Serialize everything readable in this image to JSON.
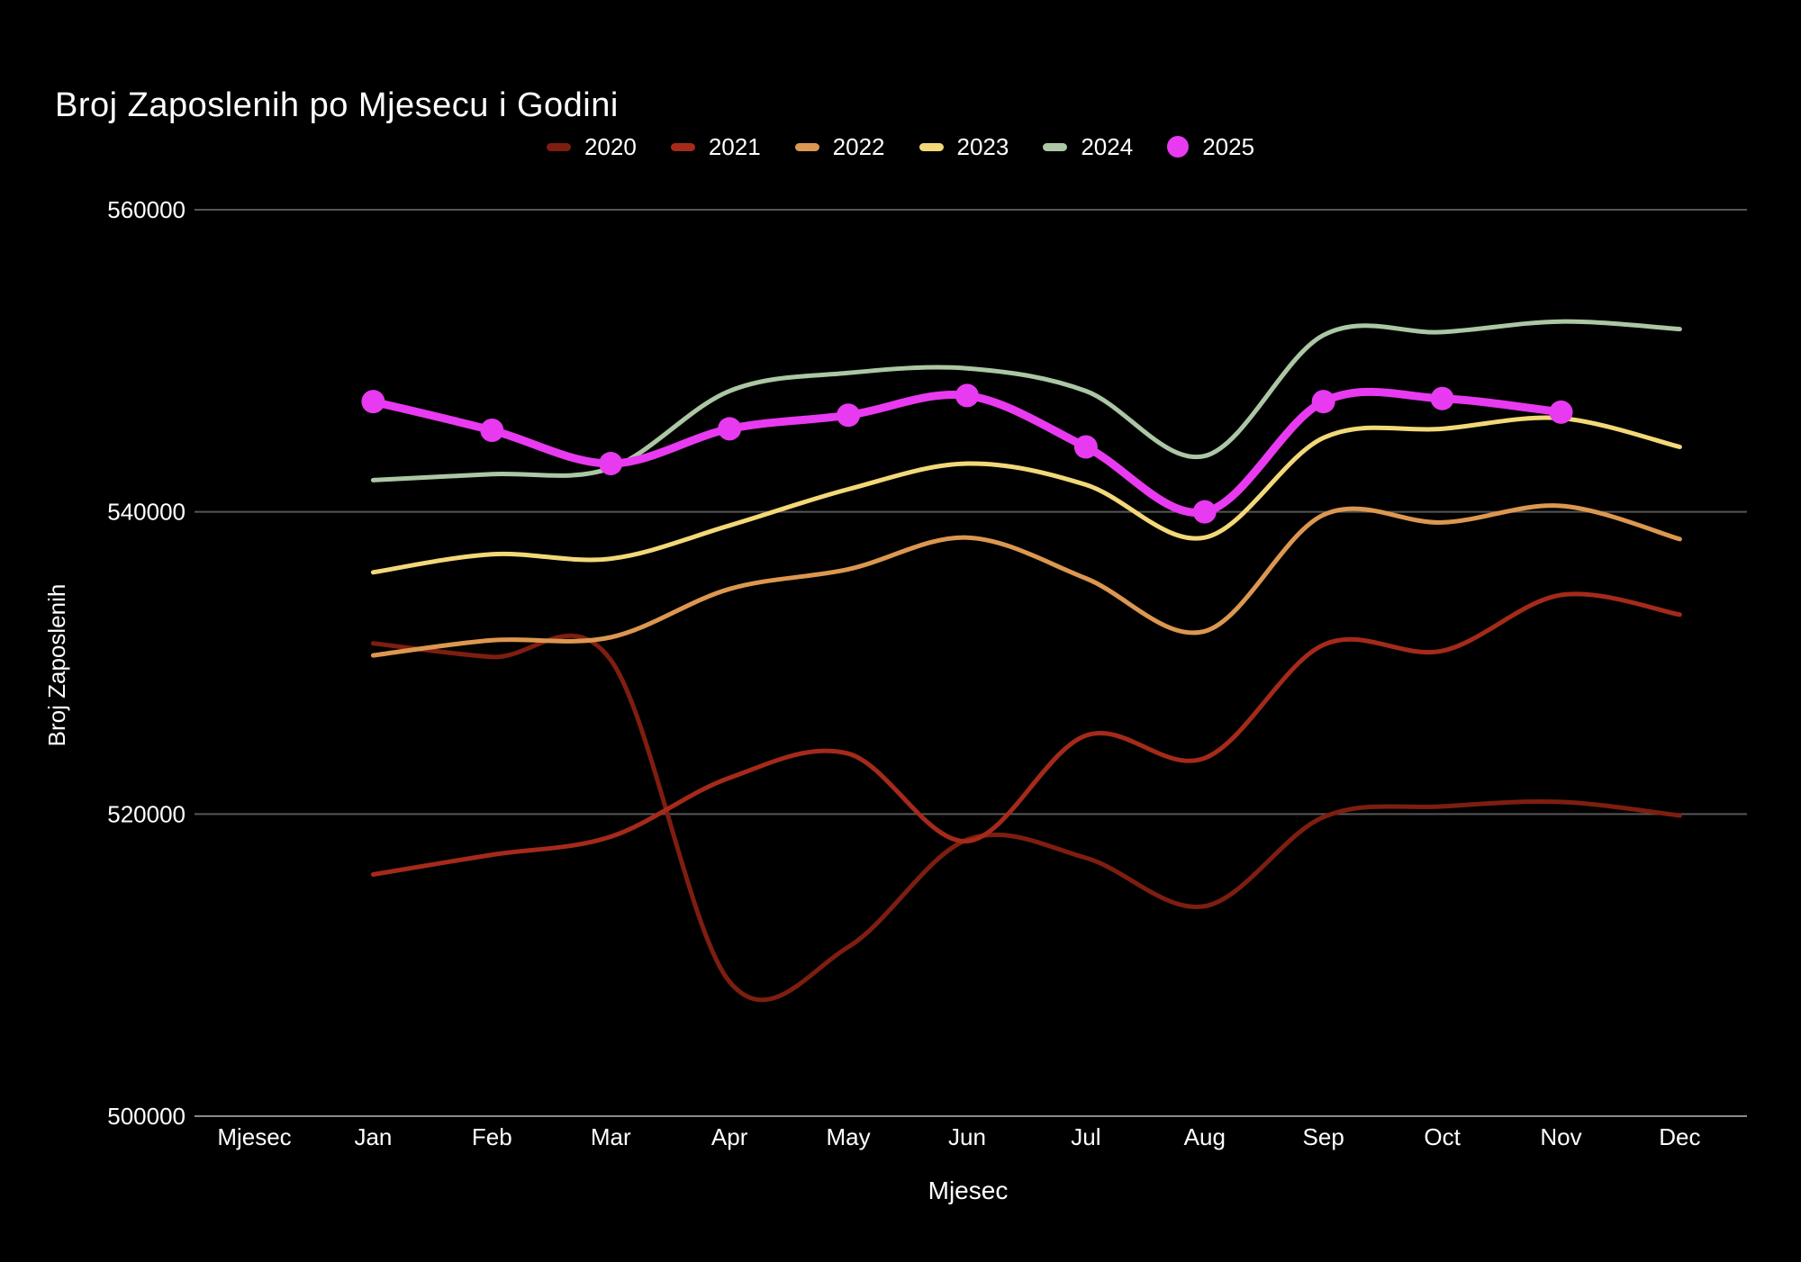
{
  "title": "Broj Zaposlenih po Mjesecu i Godini",
  "colors": {
    "background": "#000000",
    "text": "#ffffff",
    "grid": "#565656",
    "axis_line": "#8a8a8a"
  },
  "chart_data": {
    "type": "line",
    "title": "Broj Zaposlenih po Mjesecu i Godini",
    "xlabel": "Mjesec",
    "ylabel": "Broj Zaposlenih",
    "x_categories": [
      "Mjesec",
      "Jan",
      "Feb",
      "Mar",
      "Apr",
      "May",
      "Jun",
      "Jul",
      "Aug",
      "Sep",
      "Oct",
      "Nov",
      "Dec"
    ],
    "y_ticks": [
      560000,
      540000,
      520000,
      500000
    ],
    "ylim": [
      500000,
      560000
    ],
    "grid": true,
    "legend_position": "top-center",
    "curve": "spline",
    "series": [
      {
        "name": "2020",
        "color": "#7e1e10",
        "style": "line",
        "values": [
          null,
          531300,
          530400,
          530200,
          508900,
          511200,
          518300,
          517100,
          513900,
          519800,
          520500,
          520800,
          519900
        ]
      },
      {
        "name": "2021",
        "color": "#a52a1a",
        "style": "line",
        "values": [
          null,
          516000,
          517300,
          518500,
          522400,
          524000,
          518200,
          525200,
          523700,
          531200,
          530800,
          534500,
          533200
        ]
      },
      {
        "name": "2022",
        "color": "#dc9750",
        "style": "line",
        "values": [
          null,
          530500,
          531500,
          531700,
          534900,
          536200,
          538300,
          535600,
          532100,
          539800,
          539300,
          540400,
          538200
        ]
      },
      {
        "name": "2023",
        "color": "#f3d878",
        "style": "line",
        "values": [
          null,
          536000,
          537200,
          536900,
          539100,
          541500,
          543200,
          541800,
          538300,
          544900,
          545500,
          546200,
          544300
        ]
      },
      {
        "name": "2024",
        "color": "#abc7a4",
        "style": "line",
        "values": [
          null,
          542100,
          542500,
          542900,
          548000,
          549200,
          549500,
          548000,
          543700,
          551700,
          551900,
          552600,
          552100
        ]
      },
      {
        "name": "2025",
        "color": "#e83af0",
        "style": "line+markers",
        "values": [
          null,
          547300,
          545400,
          543200,
          545500,
          546400,
          547700,
          544300,
          540000,
          547300,
          547500,
          546600,
          null
        ]
      }
    ]
  }
}
